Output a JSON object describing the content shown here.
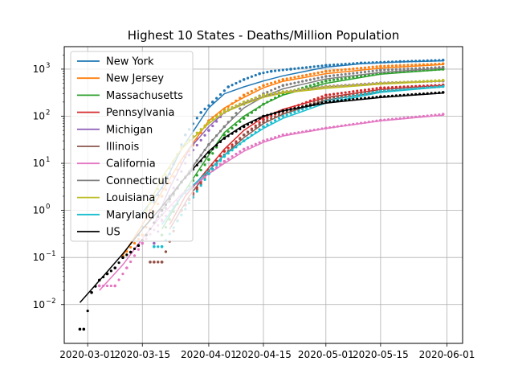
{
  "chart_data": {
    "type": "line",
    "title": "Highest 10 States - Deaths/Million Population",
    "xlabel": "",
    "ylabel": "",
    "yscale": "log",
    "ylim": [
      0.0015,
      3000
    ],
    "xlim": [
      "2020-02-24",
      "2020-06-05"
    ],
    "grid": true,
    "legend_position": "top-left",
    "x_ticks": [
      "2020-03-01",
      "2020-03-15",
      "2020-04-01",
      "2020-04-15",
      "2020-05-01",
      "2020-05-15",
      "2020-06-01"
    ],
    "y_ticks": [
      {
        "value": 0.01,
        "label": "10",
        "exp": "−2"
      },
      {
        "value": 0.1,
        "label": "10",
        "exp": "−1"
      },
      {
        "value": 1,
        "label": "10",
        "exp": "0"
      },
      {
        "value": 10,
        "label": "10",
        "exp": "1"
      },
      {
        "value": 100,
        "label": "10",
        "exp": "2"
      },
      {
        "value": 1000,
        "label": "10",
        "exp": "3"
      }
    ],
    "series": [
      {
        "name": "New York",
        "color": "#1f77b4",
        "fit": [
          [
            "2020-03-14",
            0.7
          ],
          [
            "2020-03-20",
            3
          ],
          [
            "2020-03-25",
            20
          ],
          [
            "2020-04-01",
            150
          ],
          [
            "2020-04-05",
            300
          ],
          [
            "2020-04-10",
            420
          ],
          [
            "2020-04-15",
            560
          ],
          [
            "2020-04-20",
            720
          ],
          [
            "2020-05-01",
            1100
          ],
          [
            "2020-05-10",
            1300
          ],
          [
            "2020-05-20",
            1420
          ],
          [
            "2020-05-31",
            1500
          ]
        ],
        "obs": [
          [
            "2020-03-14",
            0.3
          ],
          [
            "2020-03-18",
            1.5
          ],
          [
            "2020-03-22",
            6
          ],
          [
            "2020-03-26",
            40
          ],
          [
            "2020-03-30",
            120
          ],
          [
            "2020-04-02",
            200
          ],
          [
            "2020-04-06",
            420
          ],
          [
            "2020-04-10",
            600
          ],
          [
            "2020-04-14",
            800
          ],
          [
            "2020-04-17",
            900
          ],
          [
            "2020-04-22",
            1000
          ],
          [
            "2020-05-01",
            1200
          ],
          [
            "2020-05-10",
            1350
          ],
          [
            "2020-05-20",
            1450
          ],
          [
            "2020-05-31",
            1550
          ]
        ]
      },
      {
        "name": "New Jersey",
        "color": "#ff7f0e",
        "fit": [
          [
            "2020-03-10",
            0.11
          ],
          [
            "2020-03-15",
            0.5
          ],
          [
            "2020-03-20",
            2.5
          ],
          [
            "2020-03-25",
            12
          ],
          [
            "2020-04-01",
            80
          ],
          [
            "2020-04-05",
            150
          ],
          [
            "2020-04-10",
            250
          ],
          [
            "2020-04-15",
            400
          ],
          [
            "2020-04-20",
            550
          ],
          [
            "2020-05-01",
            800
          ],
          [
            "2020-05-15",
            1050
          ],
          [
            "2020-05-31",
            1250
          ]
        ],
        "obs": [
          [
            "2020-03-10",
            0.11
          ],
          [
            "2020-03-15",
            0.3
          ],
          [
            "2020-03-20",
            2
          ],
          [
            "2020-03-25",
            10
          ],
          [
            "2020-04-01",
            80
          ],
          [
            "2020-04-05",
            140
          ],
          [
            "2020-04-10",
            280
          ],
          [
            "2020-04-15",
            450
          ],
          [
            "2020-04-20",
            600
          ],
          [
            "2020-05-01",
            900
          ],
          [
            "2020-05-15",
            1150
          ],
          [
            "2020-05-31",
            1300
          ]
        ]
      },
      {
        "name": "Massachusetts",
        "color": "#2ca02c",
        "fit": [
          [
            "2020-03-20",
            0.4
          ],
          [
            "2020-03-25",
            2
          ],
          [
            "2020-04-01",
            15
          ],
          [
            "2020-04-05",
            45
          ],
          [
            "2020-04-10",
            100
          ],
          [
            "2020-04-15",
            180
          ],
          [
            "2020-04-20",
            280
          ],
          [
            "2020-05-01",
            500
          ],
          [
            "2020-05-15",
            780
          ],
          [
            "2020-05-31",
            980
          ]
        ],
        "obs": [
          [
            "2020-03-20",
            0.3
          ],
          [
            "2020-03-25",
            2
          ],
          [
            "2020-04-01",
            12
          ],
          [
            "2020-04-05",
            40
          ],
          [
            "2020-04-10",
            90
          ],
          [
            "2020-04-15",
            180
          ],
          [
            "2020-04-20",
            300
          ],
          [
            "2020-05-01",
            560
          ],
          [
            "2020-05-15",
            820
          ],
          [
            "2020-05-31",
            1000
          ]
        ]
      },
      {
        "name": "Pennsylvania",
        "color": "#d62728",
        "fit": [
          [
            "2020-03-22",
            0.5
          ],
          [
            "2020-03-26",
            2
          ],
          [
            "2020-04-01",
            8
          ],
          [
            "2020-04-05",
            20
          ],
          [
            "2020-04-10",
            50
          ],
          [
            "2020-04-15",
            95
          ],
          [
            "2020-04-20",
            140
          ],
          [
            "2020-05-01",
            250
          ],
          [
            "2020-05-15",
            370
          ],
          [
            "2020-05-31",
            450
          ]
        ],
        "obs": [
          [
            "2020-03-18",
            0.08
          ],
          [
            "2020-03-20",
            0.08
          ],
          [
            "2020-03-25",
            1
          ],
          [
            "2020-04-01",
            7
          ],
          [
            "2020-04-05",
            18
          ],
          [
            "2020-04-10",
            40
          ],
          [
            "2020-04-15",
            85
          ],
          [
            "2020-04-20",
            130
          ],
          [
            "2020-05-01",
            280
          ],
          [
            "2020-05-15",
            400
          ],
          [
            "2020-05-31",
            460
          ]
        ]
      },
      {
        "name": "Michigan",
        "color": "#9467bd",
        "fit": [
          [
            "2020-03-18",
            0.5
          ],
          [
            "2020-03-22",
            3
          ],
          [
            "2020-03-27",
            20
          ],
          [
            "2020-04-01",
            60
          ],
          [
            "2020-04-05",
            120
          ],
          [
            "2020-04-10",
            190
          ],
          [
            "2020-04-15",
            260
          ],
          [
            "2020-04-20",
            320
          ],
          [
            "2020-05-01",
            420
          ],
          [
            "2020-05-15",
            500
          ],
          [
            "2020-05-31",
            560
          ]
        ],
        "obs": [
          [
            "2020-03-18",
            0.2
          ],
          [
            "2020-03-22",
            2
          ],
          [
            "2020-03-27",
            15
          ],
          [
            "2020-04-01",
            50
          ],
          [
            "2020-04-05",
            120
          ],
          [
            "2020-04-10",
            200
          ],
          [
            "2020-04-15",
            280
          ],
          [
            "2020-04-20",
            330
          ],
          [
            "2020-05-01",
            430
          ],
          [
            "2020-05-15",
            510
          ],
          [
            "2020-05-31",
            560
          ]
        ]
      },
      {
        "name": "Illinois",
        "color": "#8c564b",
        "fit": [
          [
            "2020-03-22",
            0.4
          ],
          [
            "2020-03-27",
            2
          ],
          [
            "2020-04-01",
            7
          ],
          [
            "2020-04-05",
            15
          ],
          [
            "2020-04-10",
            35
          ],
          [
            "2020-04-15",
            70
          ],
          [
            "2020-04-20",
            110
          ],
          [
            "2020-05-01",
            220
          ],
          [
            "2020-05-15",
            330
          ],
          [
            "2020-05-31",
            420
          ]
        ],
        "obs": [
          [
            "2020-03-17",
            0.08
          ],
          [
            "2020-03-20",
            0.08
          ],
          [
            "2020-03-25",
            1
          ],
          [
            "2020-04-01",
            6
          ],
          [
            "2020-04-05",
            15
          ],
          [
            "2020-04-10",
            40
          ],
          [
            "2020-04-15",
            75
          ],
          [
            "2020-04-20",
            115
          ],
          [
            "2020-05-01",
            240
          ],
          [
            "2020-05-15",
            350
          ],
          [
            "2020-05-31",
            430
          ]
        ]
      },
      {
        "name": "California",
        "color": "#e377c2",
        "fit": [
          [
            "2020-03-04",
            0.02
          ],
          [
            "2020-03-10",
            0.07
          ],
          [
            "2020-03-15",
            0.25
          ],
          [
            "2020-03-20",
            0.8
          ],
          [
            "2020-03-25",
            2.2
          ],
          [
            "2020-04-01",
            6
          ],
          [
            "2020-04-05",
            10
          ],
          [
            "2020-04-10",
            18
          ],
          [
            "2020-04-15",
            28
          ],
          [
            "2020-04-20",
            38
          ],
          [
            "2020-05-01",
            55
          ],
          [
            "2020-05-15",
            80
          ],
          [
            "2020-05-31",
            105
          ]
        ],
        "obs": [
          [
            "2020-03-04",
            0.025
          ],
          [
            "2020-03-08",
            0.025
          ],
          [
            "2020-03-11",
            0.06
          ],
          [
            "2020-03-15",
            0.2
          ],
          [
            "2020-03-20",
            0.6
          ],
          [
            "2020-03-25",
            2
          ],
          [
            "2020-04-01",
            6
          ],
          [
            "2020-04-05",
            11
          ],
          [
            "2020-04-10",
            20
          ],
          [
            "2020-04-15",
            30
          ],
          [
            "2020-04-20",
            40
          ],
          [
            "2020-05-01",
            56
          ],
          [
            "2020-05-15",
            82
          ],
          [
            "2020-05-31",
            110
          ]
        ]
      },
      {
        "name": "Connecticut",
        "color": "#7f7f7f",
        "fit": [
          [
            "2020-03-20",
            1
          ],
          [
            "2020-03-25",
            4
          ],
          [
            "2020-04-01",
            25
          ],
          [
            "2020-04-05",
            60
          ],
          [
            "2020-04-10",
            150
          ],
          [
            "2020-04-15",
            260
          ],
          [
            "2020-04-20",
            380
          ],
          [
            "2020-05-01",
            620
          ],
          [
            "2020-05-15",
            850
          ],
          [
            "2020-05-31",
            1050
          ]
        ],
        "obs": [
          [
            "2020-03-20",
            0.8
          ],
          [
            "2020-03-25",
            4
          ],
          [
            "2020-04-01",
            25
          ],
          [
            "2020-04-05",
            60
          ],
          [
            "2020-04-10",
            180
          ],
          [
            "2020-04-15",
            300
          ],
          [
            "2020-04-20",
            450
          ],
          [
            "2020-05-01",
            700
          ],
          [
            "2020-05-15",
            950
          ],
          [
            "2020-05-31",
            1100
          ]
        ]
      },
      {
        "name": "Louisiana",
        "color": "#bcbd22",
        "fit": [
          [
            "2020-03-16",
            1
          ],
          [
            "2020-03-20",
            5
          ],
          [
            "2020-03-25",
            20
          ],
          [
            "2020-04-01",
            70
          ],
          [
            "2020-04-05",
            120
          ],
          [
            "2020-04-10",
            180
          ],
          [
            "2020-04-15",
            250
          ],
          [
            "2020-04-20",
            310
          ],
          [
            "2020-05-01",
            390
          ],
          [
            "2020-05-15",
            480
          ],
          [
            "2020-05-31",
            560
          ]
        ],
        "obs": [
          [
            "2020-03-16",
            1
          ],
          [
            "2020-03-20",
            4
          ],
          [
            "2020-03-25",
            22
          ],
          [
            "2020-04-01",
            75
          ],
          [
            "2020-04-05",
            130
          ],
          [
            "2020-04-10",
            200
          ],
          [
            "2020-04-15",
            280
          ],
          [
            "2020-04-20",
            330
          ],
          [
            "2020-05-01",
            420
          ],
          [
            "2020-05-15",
            500
          ],
          [
            "2020-05-31",
            580
          ]
        ]
      },
      {
        "name": "Maryland",
        "color": "#17becf",
        "fit": [
          [
            "2020-03-20",
            0.5
          ],
          [
            "2020-03-25",
            2
          ],
          [
            "2020-04-01",
            7
          ],
          [
            "2020-04-05",
            15
          ],
          [
            "2020-04-10",
            30
          ],
          [
            "2020-04-15",
            55
          ],
          [
            "2020-04-20",
            90
          ],
          [
            "2020-05-01",
            190
          ],
          [
            "2020-05-15",
            320
          ],
          [
            "2020-05-31",
            420
          ]
        ],
        "obs": [
          [
            "2020-03-18",
            0.17
          ],
          [
            "2020-03-20",
            0.17
          ],
          [
            "2020-03-25",
            0.8
          ],
          [
            "2020-04-01",
            6
          ],
          [
            "2020-04-05",
            14
          ],
          [
            "2020-04-10",
            30
          ],
          [
            "2020-04-15",
            60
          ],
          [
            "2020-04-20",
            100
          ],
          [
            "2020-05-01",
            210
          ],
          [
            "2020-05-15",
            340
          ],
          [
            "2020-05-31",
            430
          ]
        ]
      },
      {
        "name": "US",
        "color": "#000000",
        "fit": [
          [
            "2020-02-28",
            0.011
          ],
          [
            "2020-03-05",
            0.04
          ],
          [
            "2020-03-10",
            0.12
          ],
          [
            "2020-03-15",
            0.4
          ],
          [
            "2020-03-20",
            1.2
          ],
          [
            "2020-03-25",
            4
          ],
          [
            "2020-04-01",
            18
          ],
          [
            "2020-04-05",
            35
          ],
          [
            "2020-04-10",
            65
          ],
          [
            "2020-04-15",
            100
          ],
          [
            "2020-04-20",
            130
          ],
          [
            "2020-05-01",
            190
          ],
          [
            "2020-05-15",
            250
          ],
          [
            "2020-05-31",
            310
          ]
        ],
        "obs": [
          [
            "2020-02-28",
            0.003
          ],
          [
            "2020-02-29",
            0.003
          ],
          [
            "2020-03-02",
            0.018
          ],
          [
            "2020-03-04",
            0.033
          ],
          [
            "2020-03-06",
            0.045
          ],
          [
            "2020-03-08",
            0.06
          ],
          [
            "2020-03-10",
            0.1
          ],
          [
            "2020-03-12",
            0.13
          ],
          [
            "2020-03-14",
            0.18
          ],
          [
            "2020-03-16",
            0.3
          ],
          [
            "2020-03-20",
            1
          ],
          [
            "2020-03-25",
            4
          ],
          [
            "2020-04-01",
            17
          ],
          [
            "2020-04-05",
            34
          ],
          [
            "2020-04-10",
            60
          ],
          [
            "2020-04-15",
            100
          ],
          [
            "2020-04-20",
            130
          ],
          [
            "2020-05-01",
            200
          ],
          [
            "2020-05-15",
            260
          ],
          [
            "2020-05-31",
            320
          ]
        ]
      }
    ]
  }
}
